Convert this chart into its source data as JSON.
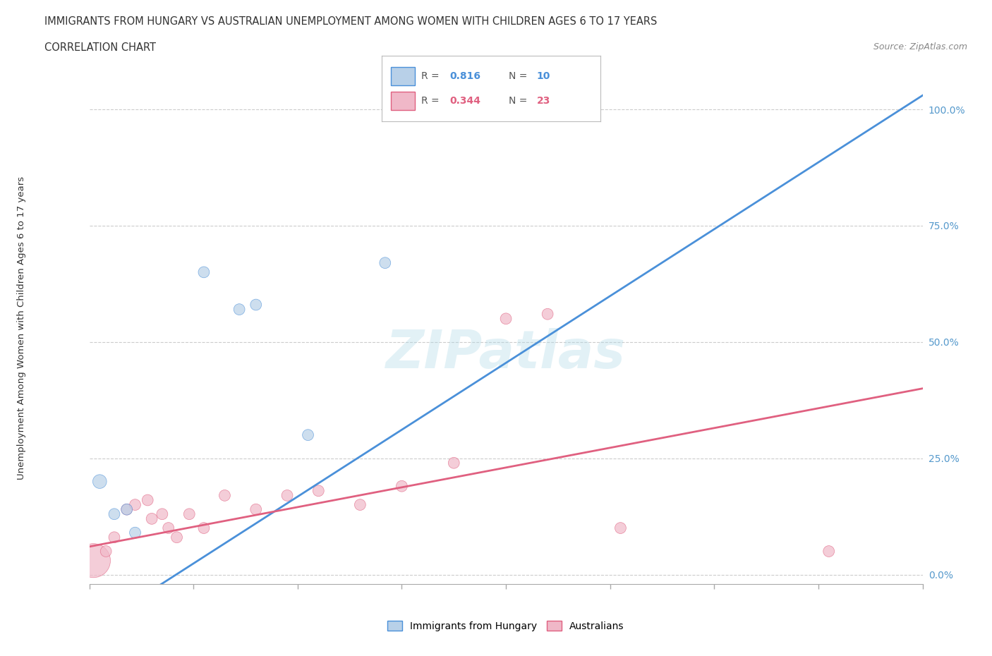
{
  "title_line1": "IMMIGRANTS FROM HUNGARY VS AUSTRALIAN UNEMPLOYMENT AMONG WOMEN WITH CHILDREN AGES 6 TO 17 YEARS",
  "title_line2": "CORRELATION CHART",
  "source": "Source: ZipAtlas.com",
  "ylabel": "Unemployment Among Women with Children Ages 6 to 17 years",
  "ytick_vals": [
    0,
    25,
    50,
    75,
    100
  ],
  "xlim": [
    0,
    4.0
  ],
  "ylim": [
    -2,
    108
  ],
  "color_blue": "#b8d0e8",
  "color_blue_line": "#4a90d9",
  "color_pink": "#f0b8c8",
  "color_pink_line": "#e06080",
  "color_purple": "#c8a0d0",
  "watermark": "ZIPatlas",
  "hungary_points": [
    [
      0.05,
      20
    ],
    [
      0.12,
      13
    ],
    [
      0.18,
      14
    ],
    [
      0.22,
      9
    ],
    [
      0.55,
      65
    ],
    [
      0.72,
      57
    ],
    [
      0.8,
      58
    ],
    [
      1.05,
      30
    ],
    [
      1.42,
      67
    ]
  ],
  "australia_points": [
    [
      0.02,
      3
    ],
    [
      0.08,
      5
    ],
    [
      0.12,
      8
    ],
    [
      0.18,
      14
    ],
    [
      0.22,
      15
    ],
    [
      0.28,
      16
    ],
    [
      0.3,
      12
    ],
    [
      0.35,
      13
    ],
    [
      0.38,
      10
    ],
    [
      0.42,
      8
    ],
    [
      0.48,
      13
    ],
    [
      0.55,
      10
    ],
    [
      0.65,
      17
    ],
    [
      0.8,
      14
    ],
    [
      0.95,
      17
    ],
    [
      1.1,
      18
    ],
    [
      1.3,
      15
    ],
    [
      1.5,
      19
    ],
    [
      1.75,
      24
    ],
    [
      2.0,
      55
    ],
    [
      2.2,
      56
    ],
    [
      2.55,
      10
    ],
    [
      3.55,
      5
    ]
  ],
  "hungary_sizes": [
    200,
    130,
    130,
    130,
    130,
    130,
    130,
    130,
    130
  ],
  "australia_sizes": [
    1200,
    130,
    130,
    130,
    130,
    130,
    130,
    130,
    130,
    130,
    130,
    130,
    130,
    130,
    130,
    130,
    130,
    130,
    130,
    130,
    130,
    130,
    130
  ],
  "hun_line": [
    0.0,
    -12.0,
    4.0,
    103.0
  ],
  "aus_line": [
    0.0,
    6.0,
    4.0,
    40.0
  ]
}
